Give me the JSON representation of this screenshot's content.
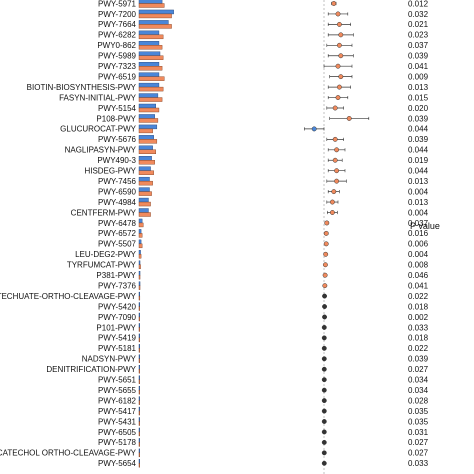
{
  "chart_data": {
    "type": "bar",
    "extra_axis_title": "P value",
    "colors": {
      "bar_a": "#4a86d8",
      "bar_b": "#f08a5d",
      "point_pos": "#f08a5d",
      "point_neg": "#4a86d8",
      "point_sig": "#333333",
      "errbar": "#333333",
      "guide": "#999999"
    },
    "rows": [
      {
        "pathway": "PWY-5971",
        "a": 22,
        "b": 24,
        "diff": 0.35,
        "err": 0.08,
        "p": "0.012"
      },
      {
        "pathway": "PWY-7200",
        "a": 33,
        "b": 31,
        "diff": 0.5,
        "err": 0.35,
        "p": "0.032"
      },
      {
        "pathway": "PWY-7664",
        "a": 28,
        "b": 31,
        "diff": 0.55,
        "err": 0.4,
        "p": "0.021"
      },
      {
        "pathway": "PWY-6282",
        "a": 19,
        "b": 23,
        "diff": 0.6,
        "err": 0.45,
        "p": "0.023"
      },
      {
        "pathway": "PWY0-862",
        "a": 19,
        "b": 22,
        "diff": 0.55,
        "err": 0.45,
        "p": "0.037"
      },
      {
        "pathway": "PWY-5989",
        "a": 20,
        "b": 23,
        "diff": 0.6,
        "err": 0.45,
        "p": "0.039"
      },
      {
        "pathway": "PWY-7323",
        "a": 19,
        "b": 22,
        "diff": 0.5,
        "err": 0.5,
        "p": "0.041"
      },
      {
        "pathway": "PWY-6519",
        "a": 19,
        "b": 24,
        "diff": 0.6,
        "err": 0.4,
        "p": "0.009"
      },
      {
        "pathway": "BIOTIN-BIOSYNTHESIS-PWY",
        "a": 19,
        "b": 23,
        "diff": 0.55,
        "err": 0.4,
        "p": "0.013"
      },
      {
        "pathway": "FASYN-INITIAL-PWY",
        "a": 18,
        "b": 22,
        "diff": 0.5,
        "err": 0.35,
        "p": "0.015"
      },
      {
        "pathway": "PWY-5154",
        "a": 16,
        "b": 19,
        "diff": 0.4,
        "err": 0.3,
        "p": "0.020"
      },
      {
        "pathway": "P108-PWY",
        "a": 15,
        "b": 18,
        "diff": 0.9,
        "err": 0.7,
        "p": "0.039"
      },
      {
        "pathway": "GLUCUROCAT-PWY",
        "a": 17,
        "b": 13,
        "diff": -0.35,
        "err": 0.35,
        "p": "0.044"
      },
      {
        "pathway": "PWY-5676",
        "a": 14,
        "b": 17,
        "diff": 0.4,
        "err": 0.3,
        "p": "0.039"
      },
      {
        "pathway": "NAGLIPASYN-PWY",
        "a": 13,
        "b": 16,
        "diff": 0.45,
        "err": 0.3,
        "p": "0.044"
      },
      {
        "pathway": "PWY490-3",
        "a": 12,
        "b": 15,
        "diff": 0.4,
        "err": 0.25,
        "p": "0.019"
      },
      {
        "pathway": "HISDEG-PWY",
        "a": 11,
        "b": 14,
        "diff": 0.45,
        "err": 0.3,
        "p": "0.044"
      },
      {
        "pathway": "PWY-7456",
        "a": 10,
        "b": 13,
        "diff": 0.45,
        "err": 0.35,
        "p": "0.013"
      },
      {
        "pathway": "PWY-6590",
        "a": 10,
        "b": 12,
        "diff": 0.35,
        "err": 0.2,
        "p": "0.004"
      },
      {
        "pathway": "PWY-4984",
        "a": 9,
        "b": 11,
        "diff": 0.3,
        "err": 0.2,
        "p": "0.013"
      },
      {
        "pathway": "CENTFERM-PWY",
        "a": 9,
        "b": 11,
        "diff": 0.3,
        "err": 0.18,
        "p": "0.004"
      },
      {
        "pathway": "PWY-6478",
        "a": 3,
        "b": 4,
        "diff": 0.1,
        "err": 0.06,
        "p": "0.037"
      },
      {
        "pathway": "PWY-6572",
        "a": 2,
        "b": 3,
        "diff": 0.08,
        "err": 0.06,
        "p": "0.016"
      },
      {
        "pathway": "PWY-5507",
        "a": 2,
        "b": 3,
        "diff": 0.08,
        "err": 0.05,
        "p": "0.006"
      },
      {
        "pathway": "LEU-DEG2-PWY",
        "a": 1.5,
        "b": 2,
        "diff": 0.06,
        "err": 0.04,
        "p": "0.004"
      },
      {
        "pathway": "TYRFUMCAT-PWY",
        "a": 1,
        "b": 1.5,
        "diff": 0.05,
        "err": 0.03,
        "p": "0.008"
      },
      {
        "pathway": "P381-PWY",
        "a": 1,
        "b": 1,
        "diff": 0.04,
        "err": 0.03,
        "p": "0.046"
      },
      {
        "pathway": "PWY-7376",
        "a": 1,
        "b": 1,
        "diff": 0.03,
        "err": 0.02,
        "p": "0.041"
      },
      {
        "pathway": "PROTOCATECHUATE-ORTHO-CLEAVAGE-PWY",
        "a": 0.6,
        "b": 0.8,
        "diff": 0.02,
        "err": 0.02,
        "p": "0.022"
      },
      {
        "pathway": "PWY-5420",
        "a": 0.5,
        "b": 0.7,
        "diff": 0.02,
        "err": 0.02,
        "p": "0.018"
      },
      {
        "pathway": "PWY-7090",
        "a": 0.4,
        "b": 0.6,
        "diff": 0.02,
        "err": 0.02,
        "p": "0.002"
      },
      {
        "pathway": "P101-PWY",
        "a": 0.4,
        "b": 0.5,
        "diff": 0.01,
        "err": 0.01,
        "p": "0.033"
      },
      {
        "pathway": "PWY-5419",
        "a": 0.3,
        "b": 0.5,
        "diff": 0.01,
        "err": 0.01,
        "p": "0.018"
      },
      {
        "pathway": "PWY-5181",
        "a": 0.3,
        "b": 0.4,
        "diff": 0.01,
        "err": 0.01,
        "p": "0.022"
      },
      {
        "pathway": "NADSYN-PWY",
        "a": 0.3,
        "b": 0.4,
        "diff": 0.01,
        "err": 0.01,
        "p": "0.039"
      },
      {
        "pathway": "DENITRIFICATION-PWY",
        "a": 0.3,
        "b": 0.4,
        "diff": 0.01,
        "err": 0.01,
        "p": "0.027"
      },
      {
        "pathway": "PWY-5651",
        "a": 0.3,
        "b": 0.4,
        "diff": 0.01,
        "err": 0.01,
        "p": "0.034"
      },
      {
        "pathway": "PWY-5655",
        "a": 0.3,
        "b": 0.4,
        "diff": 0.01,
        "err": 0.01,
        "p": "0.034"
      },
      {
        "pathway": "PWY-6182",
        "a": 0.3,
        "b": 0.4,
        "diff": 0.01,
        "err": 0.01,
        "p": "0.028"
      },
      {
        "pathway": "PWY-5417",
        "a": 0.3,
        "b": 0.4,
        "diff": 0.01,
        "err": 0.01,
        "p": "0.035"
      },
      {
        "pathway": "PWY-5431",
        "a": 0.3,
        "b": 0.4,
        "diff": 0.01,
        "err": 0.01,
        "p": "0.035"
      },
      {
        "pathway": "PWY-6505",
        "a": 0.3,
        "b": 0.4,
        "diff": 0.01,
        "err": 0.01,
        "p": "0.031"
      },
      {
        "pathway": "PWY-5178",
        "a": 0.3,
        "b": 0.4,
        "diff": 0.01,
        "err": 0.01,
        "p": "0.027"
      },
      {
        "pathway": "CATECHOL ORTHO-CLEAVAGE-PWY",
        "a": 0.3,
        "b": 0.4,
        "diff": 0.01,
        "err": 0.01,
        "p": "0.027"
      },
      {
        "pathway": "PWY-5654",
        "a": 0.3,
        "b": 0.4,
        "diff": 0.01,
        "err": 0.01,
        "p": "0.033"
      }
    ]
  }
}
